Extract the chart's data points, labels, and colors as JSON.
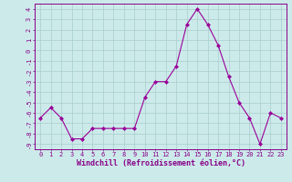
{
  "x": [
    0,
    1,
    2,
    3,
    4,
    5,
    6,
    7,
    8,
    9,
    10,
    11,
    12,
    13,
    14,
    15,
    16,
    17,
    18,
    19,
    20,
    21,
    22,
    23
  ],
  "y": [
    -6.5,
    -5.5,
    -6.5,
    -8.5,
    -8.5,
    -7.5,
    -7.5,
    -7.5,
    -7.5,
    -7.5,
    -4.5,
    -3.0,
    -3.0,
    -1.5,
    2.5,
    4.0,
    2.5,
    0.5,
    -2.5,
    -5.0,
    -6.5,
    -9.0,
    -6.0,
    -6.5
  ],
  "line_color": "#990099",
  "marker": "D",
  "marker_size": 2,
  "bg_color": "#cceaea",
  "grid_color": "#aacccc",
  "xlabel": "Windchill (Refroidissement éolien,°C)",
  "ylim": [
    -9.5,
    4.5
  ],
  "xlim": [
    -0.5,
    23.5
  ],
  "yticks": [
    4,
    3,
    2,
    1,
    0,
    -1,
    -2,
    -3,
    -4,
    -5,
    -6,
    -7,
    -8,
    -9
  ],
  "xticks": [
    0,
    1,
    2,
    3,
    4,
    5,
    6,
    7,
    8,
    9,
    10,
    11,
    12,
    13,
    14,
    15,
    16,
    17,
    18,
    19,
    20,
    21,
    22,
    23
  ],
  "tick_fontsize": 5.0,
  "xlabel_fontsize": 6.0,
  "label_color": "#880088"
}
